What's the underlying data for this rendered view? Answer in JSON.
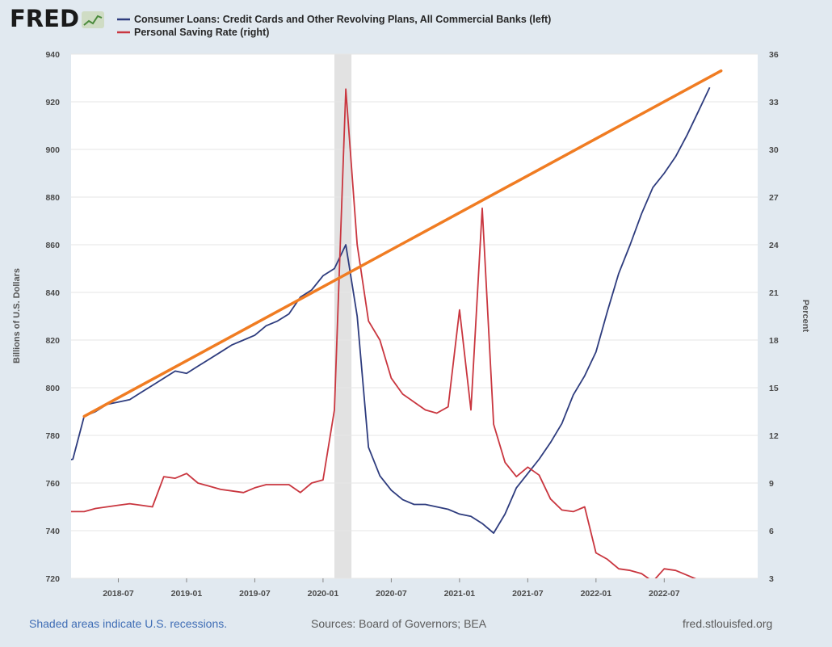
{
  "brand": {
    "logo_text": "FRED"
  },
  "legend": [
    {
      "label": "Consumer Loans: Credit Cards and Other Revolving Plans, All Commercial Banks (left)",
      "color": "#2e3c7e"
    },
    {
      "label": "Personal Saving Rate (right)",
      "color": "#c9363f"
    }
  ],
  "footer": {
    "note": "Shaded areas indicate U.S. recessions.",
    "sources": "Sources: Board of Governors; BEA",
    "site": "fred.stlouisfed.org"
  },
  "chart_data": {
    "type": "line",
    "ylabel": "Billions of U.S. Dollars",
    "y2label": "Percent",
    "ylim": [
      720,
      940
    ],
    "y2lim": [
      3,
      36
    ],
    "yticks": [
      720,
      740,
      760,
      780,
      800,
      820,
      840,
      860,
      880,
      900,
      920,
      940
    ],
    "y2ticks": [
      3,
      6,
      9,
      12,
      15,
      18,
      21,
      24,
      27,
      30,
      33,
      36
    ],
    "xlim": [
      "2018-01",
      "2022-12"
    ],
    "xticks": [
      "2018-07",
      "2019-01",
      "2019-07",
      "2020-01",
      "2020-07",
      "2021-01",
      "2021-07",
      "2022-01",
      "2022-07"
    ],
    "grid": true,
    "recession": {
      "start": "2020-02",
      "end": "2020-04"
    },
    "series": [
      {
        "name": "Consumer Loans: Credit Cards and Other Revolving Plans, All Commercial Banks (left)",
        "axis": "left",
        "color": "#2e3c7e",
        "points": [
          [
            "2018-01",
            766
          ],
          [
            "2018-02",
            769
          ],
          [
            "2018-03",
            770
          ],
          [
            "2018-04",
            788
          ],
          [
            "2018-05",
            790
          ],
          [
            "2018-06",
            793
          ],
          [
            "2018-07",
            794
          ],
          [
            "2018-08",
            795
          ],
          [
            "2018-09",
            798
          ],
          [
            "2018-10",
            801
          ],
          [
            "2018-11",
            804
          ],
          [
            "2018-12",
            807
          ],
          [
            "2019-01",
            806
          ],
          [
            "2019-02",
            809
          ],
          [
            "2019-03",
            812
          ],
          [
            "2019-04",
            815
          ],
          [
            "2019-05",
            818
          ],
          [
            "2019-06",
            820
          ],
          [
            "2019-07",
            822
          ],
          [
            "2019-08",
            826
          ],
          [
            "2019-09",
            828
          ],
          [
            "2019-10",
            831
          ],
          [
            "2019-11",
            838
          ],
          [
            "2019-12",
            841
          ],
          [
            "2020-01",
            847
          ],
          [
            "2020-02",
            850
          ],
          [
            "2020-03",
            860
          ],
          [
            "2020-04",
            830
          ],
          [
            "2020-05",
            775
          ],
          [
            "2020-06",
            763
          ],
          [
            "2020-07",
            757
          ],
          [
            "2020-08",
            753
          ],
          [
            "2020-09",
            751
          ],
          [
            "2020-10",
            751
          ],
          [
            "2020-11",
            750
          ],
          [
            "2020-12",
            749
          ],
          [
            "2021-01",
            747
          ],
          [
            "2021-02",
            746
          ],
          [
            "2021-03",
            743
          ],
          [
            "2021-04",
            739
          ],
          [
            "2021-05",
            747
          ],
          [
            "2021-06",
            758
          ],
          [
            "2021-07",
            764
          ],
          [
            "2021-08",
            770
          ],
          [
            "2021-09",
            777
          ],
          [
            "2021-10",
            785
          ],
          [
            "2021-11",
            797
          ],
          [
            "2021-12",
            805
          ],
          [
            "2022-01",
            815
          ],
          [
            "2022-02",
            832
          ],
          [
            "2022-03",
            848
          ],
          [
            "2022-04",
            860
          ],
          [
            "2022-05",
            873
          ],
          [
            "2022-06",
            884
          ],
          [
            "2022-07",
            890
          ],
          [
            "2022-08",
            897
          ],
          [
            "2022-09",
            906
          ],
          [
            "2022-10",
            916
          ],
          [
            "2022-11",
            926
          ]
        ]
      },
      {
        "name": "Personal Saving Rate (right)",
        "axis": "right",
        "color": "#c9363f",
        "points": [
          [
            "2018-01",
            7.2
          ],
          [
            "2018-02",
            7.2
          ],
          [
            "2018-03",
            7.2
          ],
          [
            "2018-04",
            7.2
          ],
          [
            "2018-05",
            7.4
          ],
          [
            "2018-06",
            7.5
          ],
          [
            "2018-07",
            7.6
          ],
          [
            "2018-08",
            7.7
          ],
          [
            "2018-09",
            7.6
          ],
          [
            "2018-10",
            7.5
          ],
          [
            "2018-11",
            9.4
          ],
          [
            "2018-12",
            9.3
          ],
          [
            "2019-01",
            9.6
          ],
          [
            "2019-02",
            9.0
          ],
          [
            "2019-03",
            8.8
          ],
          [
            "2019-04",
            8.6
          ],
          [
            "2019-05",
            8.5
          ],
          [
            "2019-06",
            8.4
          ],
          [
            "2019-07",
            8.7
          ],
          [
            "2019-08",
            8.9
          ],
          [
            "2019-09",
            8.9
          ],
          [
            "2019-10",
            8.9
          ],
          [
            "2019-11",
            8.4
          ],
          [
            "2019-12",
            9.0
          ],
          [
            "2020-01",
            9.2
          ],
          [
            "2020-02",
            13.6
          ],
          [
            "2020-03",
            33.8
          ],
          [
            "2020-04",
            24.0
          ],
          [
            "2020-05",
            19.2
          ],
          [
            "2020-06",
            18.0
          ],
          [
            "2020-07",
            15.6
          ],
          [
            "2020-08",
            14.6
          ],
          [
            "2020-09",
            14.1
          ],
          [
            "2020-10",
            13.6
          ],
          [
            "2020-11",
            13.4
          ],
          [
            "2020-12",
            13.8
          ],
          [
            "2021-01",
            19.9
          ],
          [
            "2021-02",
            13.6
          ],
          [
            "2021-03",
            26.3
          ],
          [
            "2021-04",
            12.7
          ],
          [
            "2021-05",
            10.3
          ],
          [
            "2021-06",
            9.4
          ],
          [
            "2021-07",
            10.0
          ],
          [
            "2021-08",
            9.5
          ],
          [
            "2021-09",
            8.0
          ],
          [
            "2021-10",
            7.3
          ],
          [
            "2021-11",
            7.2
          ],
          [
            "2021-12",
            7.5
          ],
          [
            "2022-01",
            4.6
          ],
          [
            "2022-02",
            4.2
          ],
          [
            "2022-03",
            3.6
          ],
          [
            "2022-04",
            3.5
          ],
          [
            "2022-05",
            3.3
          ],
          [
            "2022-06",
            2.8
          ],
          [
            "2022-07",
            3.6
          ],
          [
            "2022-08",
            3.5
          ],
          [
            "2022-09",
            3.2
          ],
          [
            "2022-10",
            2.9
          ]
        ]
      }
    ],
    "annotations": [
      {
        "type": "trend-line",
        "color": "#f07c22",
        "from": [
          "2018-04",
          788
        ],
        "to": [
          "2022-12",
          933
        ],
        "axis": "left"
      }
    ]
  }
}
